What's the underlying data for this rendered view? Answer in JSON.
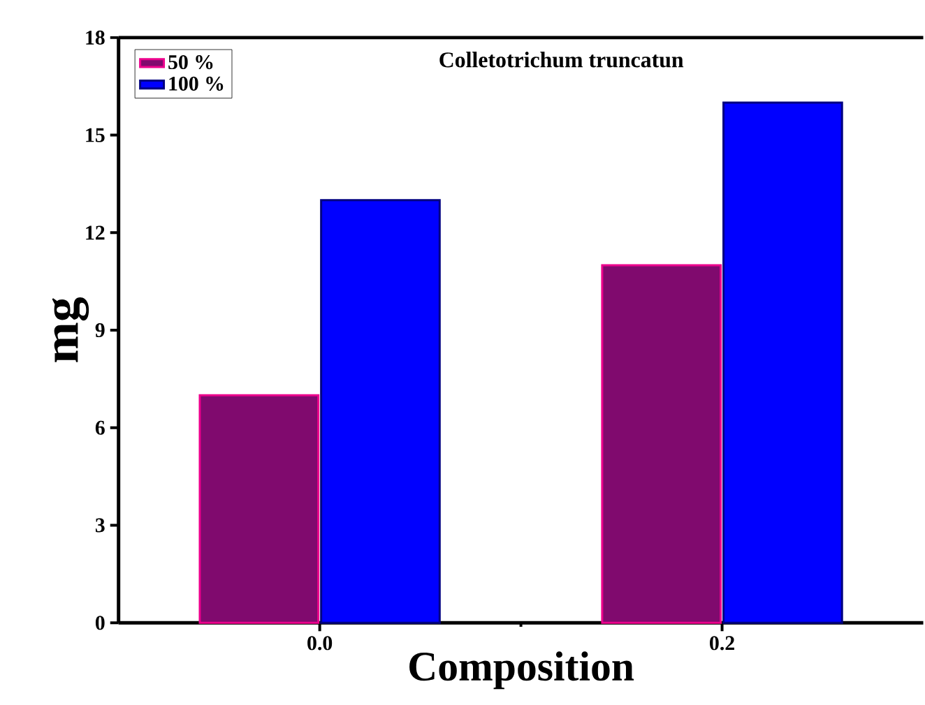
{
  "chart_data": {
    "type": "bar",
    "title": "Colletotrichum truncatun",
    "xlabel": "Composition",
    "ylabel": "mg",
    "categories": [
      "0.0",
      "0.2"
    ],
    "series": [
      {
        "name": "50 %",
        "color": "#800a6e",
        "values": [
          7,
          11
        ]
      },
      {
        "name": "100 %",
        "color": "#0000ff",
        "values": [
          13,
          16
        ]
      }
    ],
    "ylim": [
      0,
      18
    ],
    "yticks": [
      0,
      3,
      6,
      9,
      12,
      15,
      18
    ],
    "legend": "top left"
  }
}
